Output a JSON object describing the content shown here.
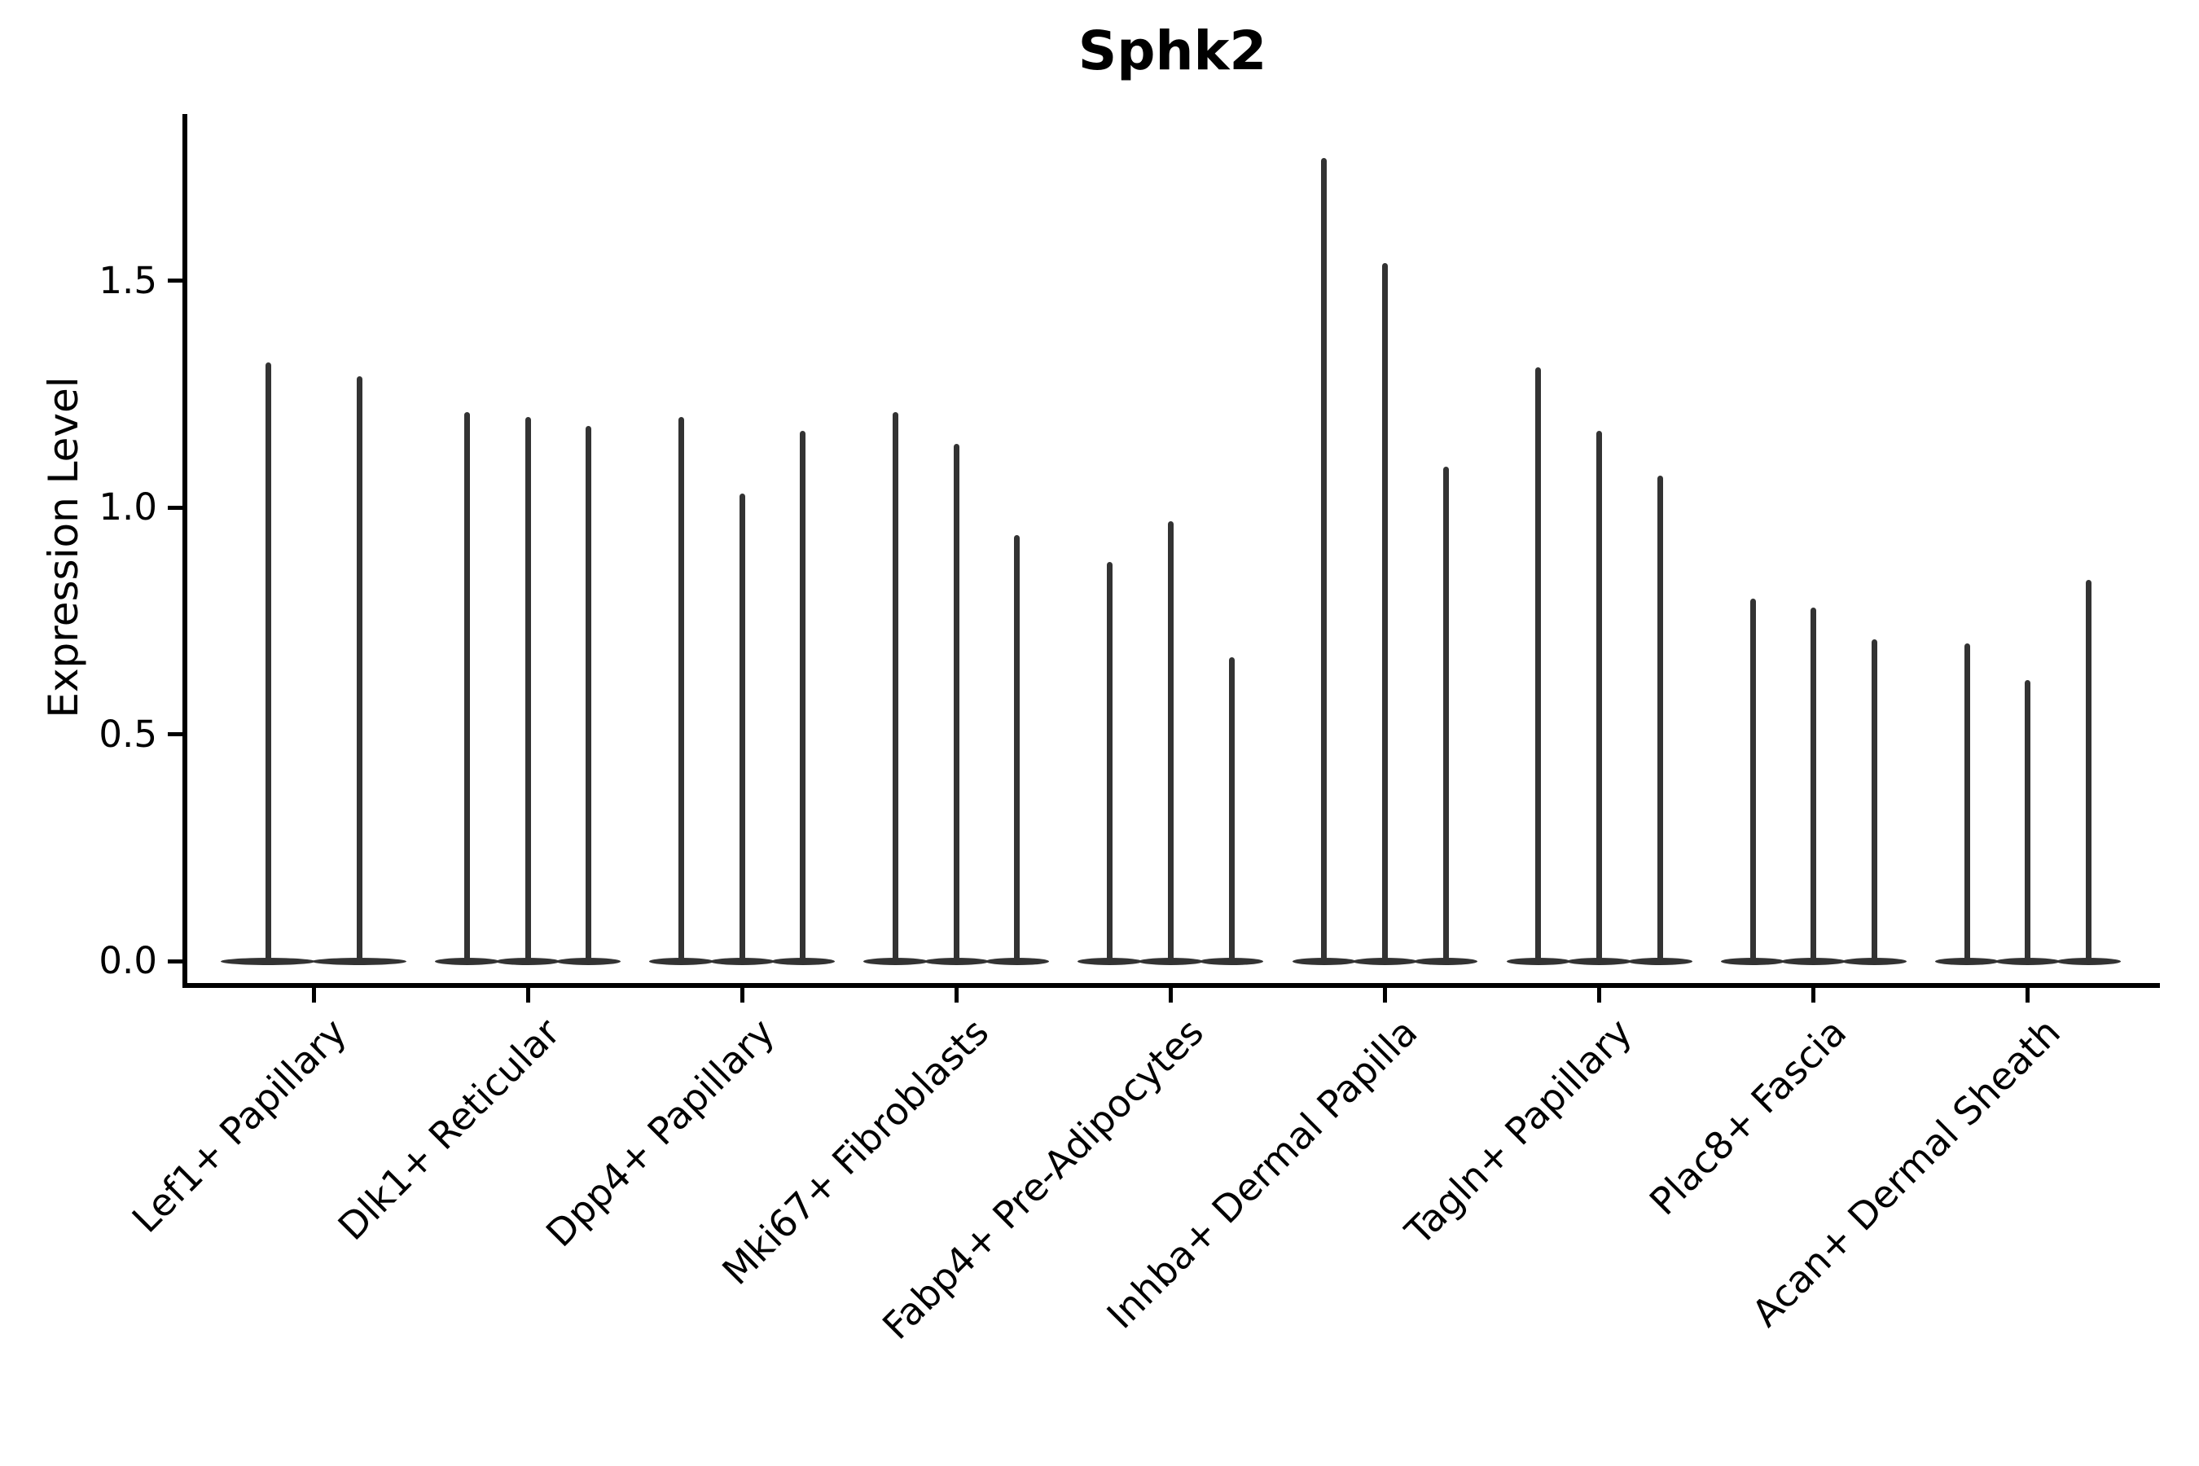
{
  "chart_data": {
    "type": "violin",
    "title": "Sphk2",
    "ylabel": "Expression Level",
    "xlabel": "",
    "yticks": [
      0.0,
      0.5,
      1.0,
      1.5
    ],
    "ytick_labels": [
      "0.0",
      "0.5",
      "1.0",
      "1.5"
    ],
    "ylim": [
      -0.05,
      1.87
    ],
    "grid": "off",
    "legend": "none",
    "description": "Zero-inflated expression violins: each violin has a wide flat body at 0 and a thin spike reaching its maximum expression value.",
    "categories": [
      "Lef1+ Papillary",
      "Dlk1+ Reticular",
      "Dpp4+ Papillary",
      "Mki67+ Fibroblasts",
      "Fabp4+ Pre-Adipocytes",
      "Inhba+ Dermal Papilla",
      "Tagln+ Papillary",
      "Plac8+ Fascia",
      "Acan+ Dermal Sheath"
    ],
    "groups": [
      {
        "label": "Lef1+ Papillary",
        "violin_max_expression": [
          1.32,
          1.29
        ]
      },
      {
        "label": "Dlk1+ Reticular",
        "violin_max_expression": [
          1.21,
          1.2,
          1.18
        ]
      },
      {
        "label": "Dpp4+ Papillary",
        "violin_max_expression": [
          1.2,
          1.03,
          1.17
        ]
      },
      {
        "label": "Mki67+ Fibroblasts",
        "violin_max_expression": [
          1.21,
          1.14,
          0.94
        ]
      },
      {
        "label": "Fabp4+ Pre-Adipocytes",
        "violin_max_expression": [
          0.88,
          0.97,
          0.67
        ]
      },
      {
        "label": "Inhba+ Dermal Papilla",
        "violin_max_expression": [
          1.77,
          1.54,
          1.09
        ]
      },
      {
        "label": "Tagln+ Papillary",
        "violin_max_expression": [
          1.31,
          1.17,
          1.07
        ]
      },
      {
        "label": "Plac8+ Fascia",
        "violin_max_expression": [
          0.8,
          0.78,
          0.71
        ]
      },
      {
        "label": "Acan+ Dermal Sheath",
        "violin_max_expression": [
          0.7,
          0.62,
          0.84
        ]
      }
    ],
    "colors": {
      "violin": "#333333",
      "spine": "#000000",
      "text": "#000000",
      "background": "#ffffff"
    }
  }
}
